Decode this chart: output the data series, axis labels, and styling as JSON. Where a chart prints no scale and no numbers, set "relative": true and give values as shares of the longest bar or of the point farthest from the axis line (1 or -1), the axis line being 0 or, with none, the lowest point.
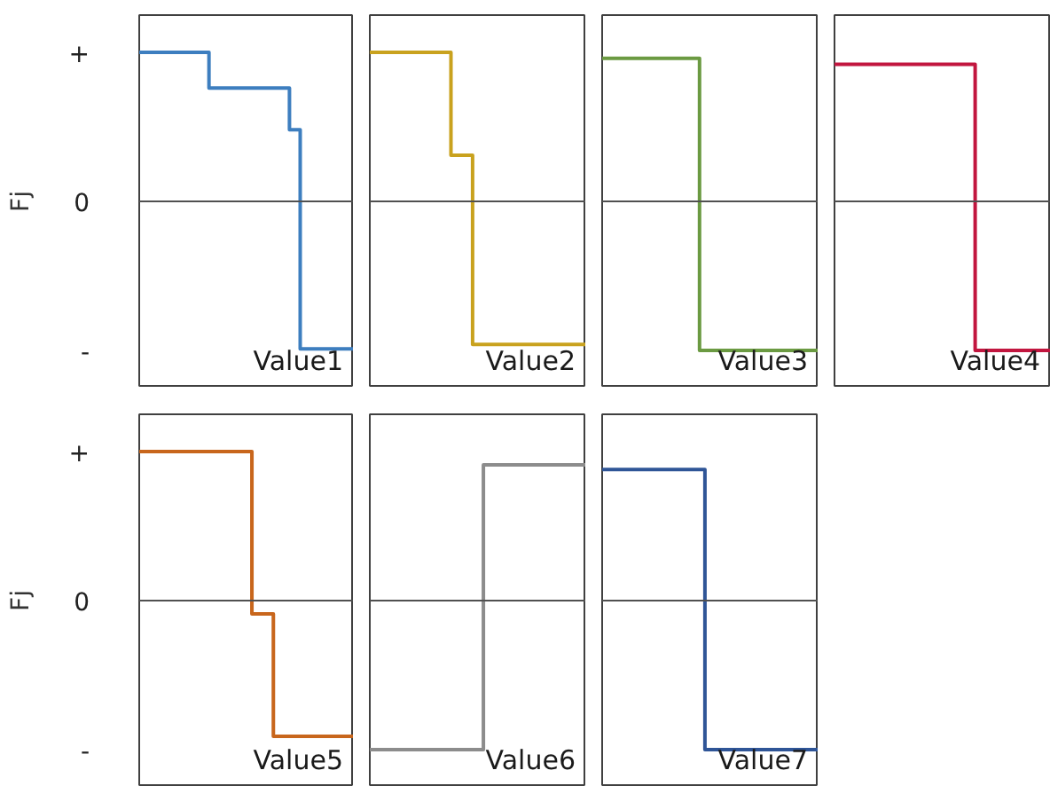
{
  "chart_data": [
    {
      "type": "step",
      "relative": true,
      "categories": [
        null,
        null,
        null,
        null,
        null,
        null,
        null,
        null,
        null,
        null,
        null,
        null,
        null,
        null,
        null,
        null,
        null,
        null,
        null,
        null,
        null,
        null,
        null,
        null,
        null,
        null,
        null,
        null,
        null,
        null,
        null,
        null,
        null,
        null,
        null,
        null,
        null,
        null,
        null,
        null,
        null
      ],
      "values": [
        1,
        1,
        1,
        1,
        1,
        1,
        1,
        1,
        1,
        1,
        1,
        1,
        1,
        0.76,
        0.76,
        0.76,
        0.76,
        0.76,
        0.76,
        0.76,
        0.76,
        0.76,
        0.76,
        0.76,
        0.76,
        0.76,
        0.76,
        0.76,
        0.48,
        0.48,
        -0.99,
        -0.99,
        -0.99,
        -0.99,
        -0.99,
        -0.99,
        -0.99,
        -0.99,
        -0.99,
        -0.99,
        -0.99
      ],
      "color": "#3d7ebf",
      "title": "Value1",
      "ylabel": "Fj",
      "annotations": [
        "+",
        "0",
        "-"
      ]
    },
    {
      "type": "step",
      "relative": true,
      "categories": [
        null,
        null,
        null,
        null,
        null,
        null,
        null,
        null,
        null,
        null,
        null,
        null,
        null,
        null,
        null,
        null,
        null,
        null,
        null,
        null,
        null,
        null,
        null,
        null,
        null,
        null,
        null,
        null,
        null,
        null,
        null,
        null,
        null,
        null,
        null,
        null,
        null,
        null,
        null,
        null,
        null
      ],
      "values": [
        1,
        1,
        1,
        1,
        1,
        1,
        1,
        1,
        1,
        1,
        1,
        1,
        1,
        1,
        1,
        0.31,
        0.31,
        0.31,
        0.31,
        -0.96,
        -0.96,
        -0.96,
        -0.96,
        -0.96,
        -0.96,
        -0.96,
        -0.96,
        -0.96,
        -0.96,
        -0.96,
        -0.96,
        -0.96,
        -0.96,
        -0.96,
        -0.96,
        -0.96,
        -0.96,
        -0.96,
        -0.96,
        -0.96,
        -0.96
      ],
      "color": "#c9a21e",
      "title": "Value2"
    },
    {
      "type": "step",
      "relative": true,
      "categories": [
        null,
        null,
        null,
        null,
        null,
        null,
        null,
        null,
        null,
        null,
        null,
        null,
        null,
        null,
        null,
        null,
        null,
        null,
        null,
        null,
        null,
        null,
        null,
        null,
        null,
        null,
        null,
        null,
        null,
        null,
        null,
        null,
        null,
        null,
        null,
        null,
        null,
        null,
        null,
        null,
        null
      ],
      "values": [
        0.96,
        0.96,
        0.96,
        0.96,
        0.96,
        0.96,
        0.96,
        0.96,
        0.96,
        0.96,
        0.96,
        0.96,
        0.96,
        0.96,
        0.96,
        0.96,
        0.96,
        0.96,
        -1,
        -1,
        -1,
        -1,
        -1,
        -1,
        -1,
        -1,
        -1,
        -1,
        -1,
        -1,
        -1,
        -1,
        -1,
        -1,
        -1,
        -1,
        -1,
        -1,
        -1,
        -1,
        -1
      ],
      "color": "#6b9a42",
      "title": "Value3"
    },
    {
      "type": "step",
      "relative": true,
      "categories": [
        null,
        null,
        null,
        null,
        null,
        null,
        null,
        null,
        null,
        null,
        null,
        null,
        null,
        null,
        null,
        null,
        null,
        null,
        null,
        null,
        null,
        null,
        null,
        null,
        null,
        null,
        null,
        null,
        null,
        null,
        null,
        null,
        null,
        null,
        null,
        null,
        null,
        null,
        null,
        null,
        null
      ],
      "values": [
        0.92,
        0.92,
        0.92,
        0.92,
        0.92,
        0.92,
        0.92,
        0.92,
        0.92,
        0.92,
        0.92,
        0.92,
        0.92,
        0.92,
        0.92,
        0.92,
        0.92,
        0.92,
        0.92,
        0.92,
        0.92,
        0.92,
        0.92,
        0.92,
        0.92,
        0.92,
        -1,
        -1,
        -1,
        -1,
        -1,
        -1,
        -1,
        -1,
        -1,
        -1,
        -1,
        -1,
        -1,
        -1,
        -1
      ],
      "color": "#c2163f",
      "title": "Value4"
    },
    {
      "type": "step",
      "relative": true,
      "categories": [
        null,
        null,
        null,
        null,
        null,
        null,
        null,
        null,
        null,
        null,
        null,
        null,
        null,
        null,
        null,
        null,
        null,
        null,
        null,
        null,
        null,
        null,
        null,
        null,
        null,
        null,
        null,
        null,
        null,
        null,
        null,
        null,
        null,
        null,
        null,
        null,
        null,
        null,
        null,
        null,
        null
      ],
      "values": [
        1,
        1,
        1,
        1,
        1,
        1,
        1,
        1,
        1,
        1,
        1,
        1,
        1,
        1,
        1,
        1,
        1,
        1,
        1,
        1,
        1,
        -0.09,
        -0.09,
        -0.09,
        -0.09,
        -0.91,
        -0.91,
        -0.91,
        -0.91,
        -0.91,
        -0.91,
        -0.91,
        -0.91,
        -0.91,
        -0.91,
        -0.91,
        -0.91,
        -0.91,
        -0.91,
        -0.91,
        -0.91
      ],
      "color": "#c8661c",
      "title": "Value5",
      "ylabel": "Fj",
      "annotations": [
        "+",
        "0",
        "-"
      ]
    },
    {
      "type": "step",
      "relative": true,
      "categories": [
        null,
        null,
        null,
        null,
        null,
        null,
        null,
        null,
        null,
        null,
        null,
        null,
        null,
        null,
        null,
        null,
        null,
        null,
        null,
        null,
        null,
        null,
        null,
        null,
        null,
        null,
        null,
        null,
        null,
        null,
        null,
        null,
        null,
        null,
        null,
        null,
        null,
        null,
        null,
        null,
        null
      ],
      "values": [
        -1,
        -1,
        -1,
        -1,
        -1,
        -1,
        -1,
        -1,
        -1,
        -1,
        -1,
        -1,
        -1,
        -1,
        -1,
        -1,
        -1,
        -1,
        -1,
        -1,
        -1,
        0.91,
        0.91,
        0.91,
        0.91,
        0.91,
        0.91,
        0.91,
        0.91,
        0.91,
        0.91,
        0.91,
        0.91,
        0.91,
        0.91,
        0.91,
        0.91,
        0.91,
        0.91,
        0.91,
        0.91
      ],
      "color": "#8c8c8c",
      "title": "Value6"
    },
    {
      "type": "step",
      "relative": true,
      "categories": [
        null,
        null,
        null,
        null,
        null,
        null,
        null,
        null,
        null,
        null,
        null,
        null,
        null,
        null,
        null,
        null,
        null,
        null,
        null,
        null,
        null,
        null,
        null,
        null,
        null,
        null,
        null,
        null,
        null,
        null,
        null,
        null,
        null,
        null,
        null,
        null,
        null,
        null,
        null,
        null,
        null
      ],
      "values": [
        0.88,
        0.88,
        0.88,
        0.88,
        0.88,
        0.88,
        0.88,
        0.88,
        0.88,
        0.88,
        0.88,
        0.88,
        0.88,
        0.88,
        0.88,
        0.88,
        0.88,
        0.88,
        0.88,
        -1,
        -1,
        -1,
        -1,
        -1,
        -1,
        -1,
        -1,
        -1,
        -1,
        -1,
        -1,
        -1,
        -1,
        -1,
        -1,
        -1,
        -1,
        -1,
        -1,
        -1,
        -1
      ],
      "color": "#2f5597",
      "title": "Value7"
    }
  ]
}
